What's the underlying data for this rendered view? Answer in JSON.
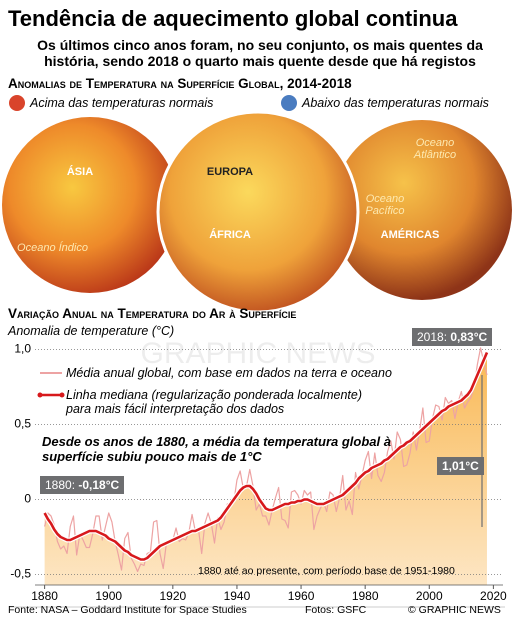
{
  "header": {
    "title": "Tendência de aquecimento global continua",
    "subtitle": "Os últimos cinco anos foram, no seu conjunto, os mais quentes da história, sendo 2018 o quarto mais quente desde que há registos"
  },
  "maps": {
    "title": "Anomalias de Temperatura na Superfície Global, 2014-2018",
    "legend": [
      {
        "name": "Acima das temperaturas normais",
        "color": "#d9442b"
      },
      {
        "name": "Abaixo das temperaturas normais",
        "color": "#4a7cc0"
      }
    ],
    "labels": [
      "ÁSIA",
      "Oceano Índico",
      "EUROPA",
      "ÁFRICA",
      "Oceano Atlântico",
      "Oceano Pacífico",
      "AMÉRICAS"
    ]
  },
  "watermark": "GRAPHIC NEWS",
  "chart_data": {
    "type": "line",
    "title": "Variação Anual na Temperatura do Ar à Superfície",
    "y_label": "Anomalia de temperature (°C)",
    "xlim": [
      1877,
      2023
    ],
    "ylim": [
      -0.57,
      1.13
    ],
    "xticks": [
      1880,
      1900,
      1920,
      1940,
      1960,
      1980,
      2000,
      2020
    ],
    "yticks": [
      {
        "value": 1,
        "label": "1,0"
      },
      {
        "value": 0.5,
        "label": "0,5"
      },
      0,
      {
        "value": -0.5,
        "label": "-0,5"
      }
    ],
    "grid": true,
    "x": [
      1880,
      1881,
      1882,
      1883,
      1884,
      1885,
      1886,
      1887,
      1888,
      1889,
      1890,
      1891,
      1892,
      1893,
      1894,
      1895,
      1896,
      1897,
      1898,
      1899,
      1900,
      1901,
      1902,
      1903,
      1904,
      1905,
      1906,
      1907,
      1908,
      1909,
      1910,
      1911,
      1912,
      1913,
      1914,
      1915,
      1916,
      1917,
      1918,
      1919,
      1920,
      1921,
      1922,
      1923,
      1924,
      1925,
      1926,
      1927,
      1928,
      1929,
      1930,
      1931,
      1932,
      1933,
      1934,
      1935,
      1936,
      1937,
      1938,
      1939,
      1940,
      1941,
      1942,
      1943,
      1944,
      1945,
      1946,
      1947,
      1948,
      1949,
      1950,
      1951,
      1952,
      1953,
      1954,
      1955,
      1956,
      1957,
      1958,
      1959,
      1960,
      1961,
      1962,
      1963,
      1964,
      1965,
      1966,
      1967,
      1968,
      1969,
      1970,
      1971,
      1972,
      1973,
      1974,
      1975,
      1976,
      1977,
      1978,
      1979,
      1980,
      1981,
      1982,
      1983,
      1984,
      1985,
      1986,
      1987,
      1988,
      1989,
      1990,
      1991,
      1992,
      1993,
      1994,
      1995,
      1996,
      1997,
      1998,
      1999,
      2000,
      2001,
      2002,
      2003,
      2004,
      2005,
      2006,
      2007,
      2008,
      2009,
      2010,
      2011,
      2012,
      2013,
      2014,
      2015,
      2016,
      2017,
      2018
    ],
    "series": [
      {
        "name": "Média anual global, com base em dados na terra e oceano",
        "color": "#eda3a3",
        "values": [
          -0.18,
          -0.09,
          -0.11,
          -0.17,
          -0.28,
          -0.33,
          -0.31,
          -0.36,
          -0.18,
          -0.11,
          -0.37,
          -0.23,
          -0.27,
          -0.32,
          -0.32,
          -0.23,
          -0.11,
          -0.11,
          -0.27,
          -0.18,
          -0.09,
          -0.15,
          -0.28,
          -0.37,
          -0.47,
          -0.26,
          -0.22,
          -0.39,
          -0.43,
          -0.48,
          -0.43,
          -0.44,
          -0.36,
          -0.35,
          -0.15,
          -0.14,
          -0.36,
          -0.46,
          -0.29,
          -0.27,
          -0.27,
          -0.19,
          -0.28,
          -0.26,
          -0.27,
          -0.22,
          -0.1,
          -0.21,
          -0.2,
          -0.36,
          -0.16,
          -0.09,
          -0.16,
          -0.29,
          -0.12,
          -0.2,
          -0.15,
          -0.03,
          -0.02,
          -0.02,
          0.13,
          0.19,
          0.07,
          0.09,
          0.2,
          0.09,
          -0.07,
          -0.03,
          -0.11,
          -0.11,
          -0.17,
          -0.07,
          0.01,
          0.08,
          -0.13,
          -0.14,
          -0.19,
          0.05,
          0.06,
          0.03,
          -0.03,
          0.06,
          0.03,
          0.05,
          -0.2,
          -0.11,
          -0.06,
          -0.02,
          -0.08,
          0.05,
          0.03,
          -0.08,
          0.01,
          0.16,
          -0.07,
          -0.01,
          -0.1,
          0.18,
          0.07,
          0.16,
          0.26,
          0.32,
          0.14,
          0.31,
          0.16,
          0.12,
          0.18,
          0.32,
          0.39,
          0.27,
          0.45,
          0.4,
          0.22,
          0.23,
          0.31,
          0.45,
          0.33,
          0.46,
          0.61,
          0.38,
          0.39,
          0.54,
          0.63,
          0.62,
          0.53,
          0.68,
          0.64,
          0.66,
          0.54,
          0.65,
          0.72,
          0.61,
          0.65,
          0.68,
          0.75,
          0.9,
          1.01,
          0.92,
          0.83
        ]
      },
      {
        "name": "Linha mediana (regularização ponderada localmente) para mais fácil interpretação dos dados",
        "color": "#d7191c",
        "values": [
          -0.09,
          -0.13,
          -0.16,
          -0.2,
          -0.23,
          -0.25,
          -0.26,
          -0.27,
          -0.27,
          -0.26,
          -0.25,
          -0.24,
          -0.23,
          -0.22,
          -0.21,
          -0.21,
          -0.21,
          -0.22,
          -0.23,
          -0.24,
          -0.26,
          -0.27,
          -0.28,
          -0.3,
          -0.32,
          -0.34,
          -0.35,
          -0.37,
          -0.38,
          -0.39,
          -0.4,
          -0.4,
          -0.39,
          -0.37,
          -0.35,
          -0.33,
          -0.31,
          -0.3,
          -0.29,
          -0.28,
          -0.27,
          -0.26,
          -0.25,
          -0.24,
          -0.23,
          -0.22,
          -0.21,
          -0.21,
          -0.2,
          -0.19,
          -0.18,
          -0.17,
          -0.16,
          -0.15,
          -0.14,
          -0.12,
          -0.09,
          -0.06,
          -0.03,
          0,
          0.03,
          0.06,
          0.08,
          0.09,
          0.09,
          0.07,
          0.04,
          0,
          -0.03,
          -0.06,
          -0.07,
          -0.07,
          -0.06,
          -0.05,
          -0.04,
          -0.03,
          -0.03,
          -0.02,
          -0.02,
          -0.01,
          -0.01,
          0,
          0,
          -0.01,
          -0.02,
          -0.03,
          -0.03,
          -0.03,
          -0.02,
          -0.01,
          0,
          0.01,
          0.02,
          0.03,
          0.05,
          0.07,
          0.09,
          0.11,
          0.14,
          0.16,
          0.18,
          0.19,
          0.21,
          0.22,
          0.23,
          0.24,
          0.26,
          0.27,
          0.29,
          0.31,
          0.33,
          0.35,
          0.36,
          0.38,
          0.39,
          0.41,
          0.43,
          0.45,
          0.47,
          0.49,
          0.51,
          0.53,
          0.55,
          0.57,
          0.59,
          0.6,
          0.62,
          0.63,
          0.64,
          0.65,
          0.66,
          0.68,
          0.7,
          0.73,
          0.78,
          0.83,
          0.88,
          0.93,
          0.98
        ]
      }
    ],
    "annotations": {
      "note": "Desde os anos de 1880, a média da temperatura global à superfície subiu pouco mais de 1°C",
      "start_label": "1880:",
      "start_value": "-0,18°C",
      "end_label": "2018:",
      "end_value": "0,83°C",
      "change": "1,01°C",
      "base_period": "1880 até ao presente, com período base de 1951-1980"
    }
  },
  "footer": {
    "source": "Fonte: NASA – Goddard Institute for Space Studies",
    "photos": "Fotos: GSFC",
    "credit": "© GRAPHIC NEWS"
  }
}
